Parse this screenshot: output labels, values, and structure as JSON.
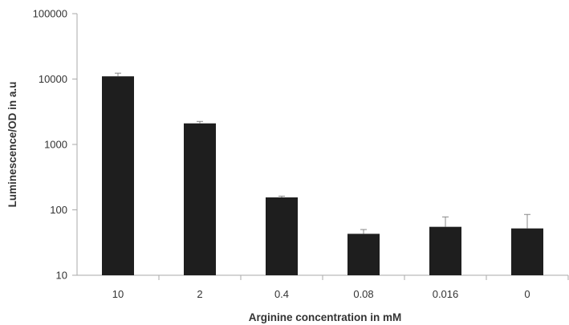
{
  "chart_data": {
    "type": "bar",
    "title": "",
    "xlabel": "Arginine concentration in mM",
    "ylabel": "Luminescence/OD in a.u",
    "yscale": "log",
    "ylim": [
      10,
      100000
    ],
    "yticks": [
      10,
      100,
      1000,
      10000,
      100000
    ],
    "ytick_labels": [
      "10",
      "100",
      "1000",
      "10000",
      "100000"
    ],
    "categories": [
      "10",
      "2",
      "0.4",
      "0.08",
      "0.016",
      "0"
    ],
    "values": [
      11000,
      2100,
      155,
      43,
      55,
      52
    ],
    "error_upper": [
      12300,
      2250,
      162,
      50,
      78,
      85
    ],
    "grid": false,
    "bar_color": "#1e1e1e",
    "axis_color": "#aaaaaa"
  }
}
